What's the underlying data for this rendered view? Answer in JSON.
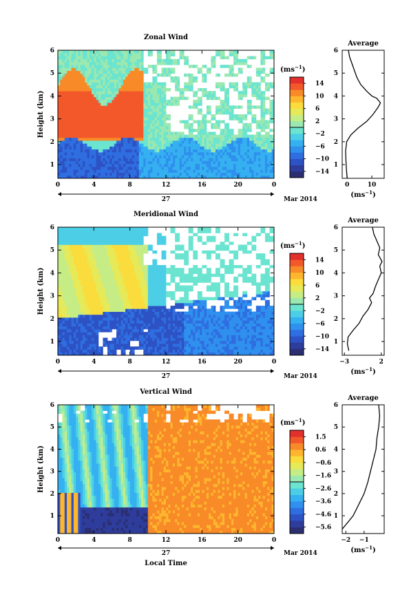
{
  "chart_data": [
    {
      "type": "heatmap",
      "title": "Zonal Wind",
      "ylabel": "Height (km)",
      "ylim": [
        0.4,
        6.0
      ],
      "yticks": [
        "1",
        "2",
        "3",
        "4",
        "5",
        "6"
      ],
      "xlim": [
        0,
        24
      ],
      "xticks": [
        "0",
        "4",
        "8",
        "12",
        "16",
        "20",
        "0"
      ],
      "date_label": "27",
      "month_label": "Mar 2014",
      "colorbar": {
        "unit": "(ms",
        "unit_sup": "−1",
        "unit_close": ")",
        "ticks": [
          "14",
          "10",
          "6",
          "2",
          "−2",
          "−6",
          "−10",
          "−14"
        ],
        "range": [
          -16,
          16
        ]
      },
      "average": {
        "title": "Average",
        "xlabel": "(ms",
        "xlabel_sup": "−1",
        "xlabel_close": ")",
        "xticks": [
          "0",
          "10"
        ],
        "xlim": [
          -2,
          15
        ],
        "profile": [
          [
            0.4,
            0.0
          ],
          [
            0.8,
            -0.3
          ],
          [
            1.2,
            -0.5
          ],
          [
            1.6,
            -0.6
          ],
          [
            2.0,
            -0.2
          ],
          [
            2.3,
            1.5
          ],
          [
            2.6,
            4.5
          ],
          [
            2.9,
            8.0
          ],
          [
            3.2,
            10.5
          ],
          [
            3.5,
            12.5
          ],
          [
            3.7,
            13.5
          ],
          [
            3.9,
            12.0
          ],
          [
            4.0,
            10.0
          ],
          [
            4.2,
            8.0
          ],
          [
            4.5,
            5.5
          ],
          [
            4.8,
            4.0
          ],
          [
            5.1,
            3.0
          ],
          [
            5.4,
            2.0
          ],
          [
            5.7,
            1.0
          ],
          [
            6.0,
            0.5
          ]
        ]
      }
    },
    {
      "type": "heatmap",
      "title": "Meridional Wind",
      "ylabel": "Height (km)",
      "ylim": [
        0.4,
        6.0
      ],
      "yticks": [
        "1",
        "2",
        "3",
        "4",
        "5",
        "6"
      ],
      "xlim": [
        0,
        24
      ],
      "xticks": [
        "0",
        "4",
        "8",
        "12",
        "16",
        "20",
        "0"
      ],
      "date_label": "27",
      "month_label": "Mar 2014",
      "colorbar": {
        "unit": "(ms",
        "unit_sup": "−1",
        "unit_close": ")",
        "ticks": [
          "14",
          "10",
          "6",
          "2",
          "−2",
          "−6",
          "−10",
          "−14"
        ],
        "range": [
          -16,
          16
        ]
      },
      "average": {
        "title": "Average",
        "xlabel": "(ms",
        "xlabel_sup": "−1",
        "xlabel_close": ")",
        "xticks": [
          "−3",
          "2"
        ],
        "xlim": [
          -3.3,
          2.4
        ],
        "profile": [
          [
            0.6,
            -2.4
          ],
          [
            0.9,
            -2.6
          ],
          [
            1.2,
            -2.5
          ],
          [
            1.5,
            -1.8
          ],
          [
            1.8,
            -1.0
          ],
          [
            2.1,
            -0.5
          ],
          [
            2.4,
            0.2
          ],
          [
            2.7,
            0.7
          ],
          [
            2.9,
            0.4
          ],
          [
            3.1,
            0.9
          ],
          [
            3.4,
            1.2
          ],
          [
            3.7,
            1.6
          ],
          [
            4.0,
            2.0
          ],
          [
            4.3,
            1.8
          ],
          [
            4.5,
            2.1
          ],
          [
            4.8,
            1.6
          ],
          [
            5.1,
            1.8
          ],
          [
            5.4,
            1.4
          ],
          [
            5.7,
            1.0
          ],
          [
            6.0,
            0.8
          ]
        ]
      }
    },
    {
      "type": "heatmap",
      "title": "Vertical Wind",
      "ylabel": "Height (km)",
      "ylim": [
        0.2,
        6.0
      ],
      "yticks": [
        "1",
        "2",
        "3",
        "4",
        "5",
        "6"
      ],
      "xlim": [
        0,
        24
      ],
      "xticks": [
        "0",
        "4",
        "8",
        "12",
        "16",
        "20",
        "0"
      ],
      "xlabel": "Local Time",
      "date_label": "27",
      "month_label": "Mar 2014",
      "colorbar": {
        "unit": "(ms",
        "unit_sup": "−1",
        "unit_close": ")",
        "ticks": [
          "1.5",
          "0.6",
          "−0.6",
          "−1.6",
          "−2.6",
          "−3.6",
          "−4.6",
          "−5.6"
        ],
        "range": [
          -6.2,
          2.0
        ]
      },
      "average": {
        "title": "Average",
        "xlabel": "(ms",
        "xlabel_sup": "−1",
        "xlabel_close": ")",
        "xticks": [
          "−2",
          "−1"
        ],
        "xlim": [
          -2.2,
          0.1
        ],
        "profile": [
          [
            0.4,
            -2.2
          ],
          [
            0.7,
            -1.9
          ],
          [
            1.0,
            -1.6
          ],
          [
            1.5,
            -1.3
          ],
          [
            2.0,
            -1.0
          ],
          [
            2.5,
            -0.8
          ],
          [
            3.0,
            -0.65
          ],
          [
            3.5,
            -0.5
          ],
          [
            4.0,
            -0.35
          ],
          [
            4.5,
            -0.3
          ],
          [
            5.0,
            -0.2
          ],
          [
            5.5,
            -0.15
          ],
          [
            6.0,
            -0.2
          ]
        ]
      }
    }
  ]
}
